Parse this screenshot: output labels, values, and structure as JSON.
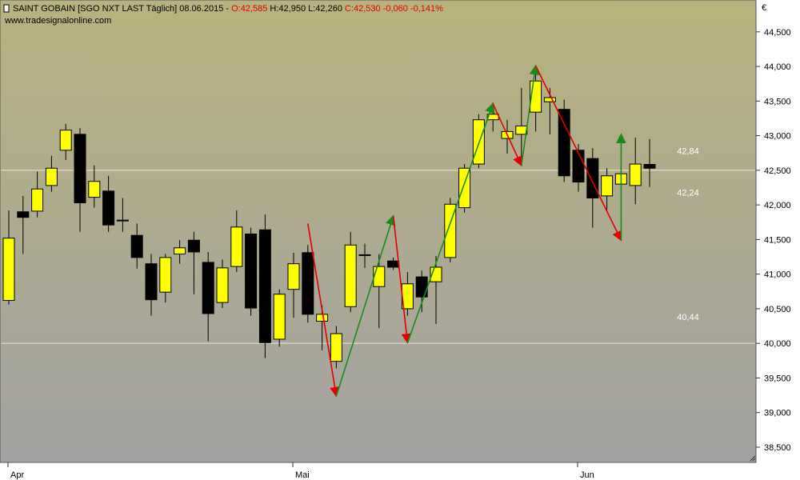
{
  "chart_data": {
    "type": "candlestick",
    "header": [
      {
        "text": "SAINT GOBAIN [SGO NXT LAST Täglich] 08.06.2015 -",
        "color": "#000000"
      },
      {
        "text": "O:42,585",
        "color": "#e00000"
      },
      {
        "text": "H:42,950 L:42,260",
        "color": "#000000"
      },
      {
        "text": "C:42,530 -0,060 -0,141%",
        "color": "#e00000"
      }
    ],
    "source": "www.tradesignalonline.com",
    "unit": "€",
    "categories": [
      "Apr",
      null,
      null,
      null,
      null,
      null,
      null,
      null,
      null,
      null,
      null,
      null,
      null,
      null,
      null,
      null,
      null,
      null,
      null,
      null,
      "Mai",
      null,
      null,
      null,
      null,
      null,
      null,
      null,
      null,
      null,
      null,
      null,
      null,
      null,
      null,
      null,
      null,
      null,
      null,
      null,
      "Jun",
      null,
      null,
      null,
      null,
      null
    ],
    "open": [
      40.62,
      41.9,
      41.91,
      42.28,
      42.79,
      43.02,
      42.11,
      42.2,
      41.77,
      41.56,
      41.15,
      40.74,
      41.29,
      41.49,
      41.17,
      40.59,
      41.11,
      41.58,
      41.64,
      40.06,
      40.78,
      41.31,
      40.32,
      39.74,
      40.53,
      41.27,
      40.82,
      41.19,
      40.5,
      40.96,
      40.89,
      41.24,
      41.96,
      42.59,
      43.23,
      42.96,
      43.02,
      43.34,
      43.49,
      43.38,
      42.79,
      42.67,
      42.13,
      42.3,
      42.28,
      42.585
    ],
    "high": [
      41.92,
      42.13,
      42.48,
      42.71,
      43.17,
      43.11,
      42.57,
      42.42,
      42.1,
      41.73,
      41.29,
      41.29,
      41.49,
      41.61,
      41.32,
      41.21,
      41.92,
      41.67,
      41.86,
      40.78,
      41.31,
      41.42,
      40.55,
      40.25,
      41.61,
      41.44,
      41.29,
      41.24,
      41.03,
      41.05,
      41.26,
      42.1,
      42.59,
      43.31,
      43.48,
      43.23,
      43.69,
      43.92,
      43.69,
      43.52,
      42.88,
      42.82,
      42.53,
      42.77,
      42.97,
      42.95
    ],
    "low": [
      40.56,
      41.29,
      41.82,
      42.19,
      42.65,
      41.61,
      41.96,
      41.61,
      41.61,
      41.08,
      40.4,
      40.59,
      41.15,
      40.71,
      40.03,
      40.51,
      41.03,
      40.4,
      39.79,
      39.95,
      40.37,
      40.3,
      39.9,
      39.64,
      40.45,
      41.09,
      40.22,
      41.06,
      40.4,
      40.45,
      40.28,
      41.17,
      41.89,
      42.53,
      43.06,
      42.74,
      42.65,
      43.06,
      43.02,
      42.33,
      42.19,
      41.67,
      41.93,
      42.19,
      42.01,
      42.26
    ],
    "close": [
      41.52,
      41.82,
      42.23,
      42.53,
      43.08,
      42.03,
      42.34,
      41.71,
      41.78,
      41.24,
      40.63,
      41.24,
      41.38,
      41.32,
      40.43,
      41.09,
      41.68,
      40.51,
      40.01,
      40.71,
      41.15,
      40.42,
      40.42,
      40.14,
      41.42,
      41.28,
      41.11,
      41.1,
      40.86,
      40.67,
      41.1,
      42.01,
      42.53,
      43.23,
      43.31,
      43.06,
      43.14,
      43.79,
      43.55,
      42.42,
      42.33,
      42.1,
      42.42,
      42.45,
      42.59,
      42.53
    ],
    "up_color": "#ffff00",
    "down_color": "#000000",
    "zigzag": {
      "x": [
        21,
        23,
        27,
        28,
        34,
        36,
        37,
        43,
        43
      ],
      "y": [
        41.73,
        39.24,
        41.84,
        40.01,
        43.46,
        42.57,
        44.01,
        41.49,
        43.02
      ],
      "up_color": "#1a8a1a",
      "down_color": "#e00000"
    },
    "hlines": [
      42.5,
      40.0
    ],
    "levels": [
      {
        "value": 42.84,
        "label": "42,84"
      },
      {
        "value": 42.24,
        "label": "42,24"
      },
      {
        "value": 40.44,
        "label": "40,44"
      }
    ],
    "ylim": [
      38.28,
      44.96
    ],
    "yticks": [
      {
        "value": 38.5,
        "label": "38,500"
      },
      {
        "value": 39,
        "label": "39,000"
      },
      {
        "value": 39.5,
        "label": "39,500"
      },
      {
        "value": 40,
        "label": "40,000"
      },
      {
        "value": 40.5,
        "label": "40,500"
      },
      {
        "value": 41,
        "label": "41,000"
      },
      {
        "value": 41.5,
        "label": "41,500"
      },
      {
        "value": 42,
        "label": "42,000"
      },
      {
        "value": 42.5,
        "label": "42,500"
      },
      {
        "value": 43,
        "label": "43,000"
      },
      {
        "value": 43.5,
        "label": "43,500"
      },
      {
        "value": 44,
        "label": "44,000"
      },
      {
        "value": 44.5,
        "label": "44,500"
      }
    ]
  }
}
